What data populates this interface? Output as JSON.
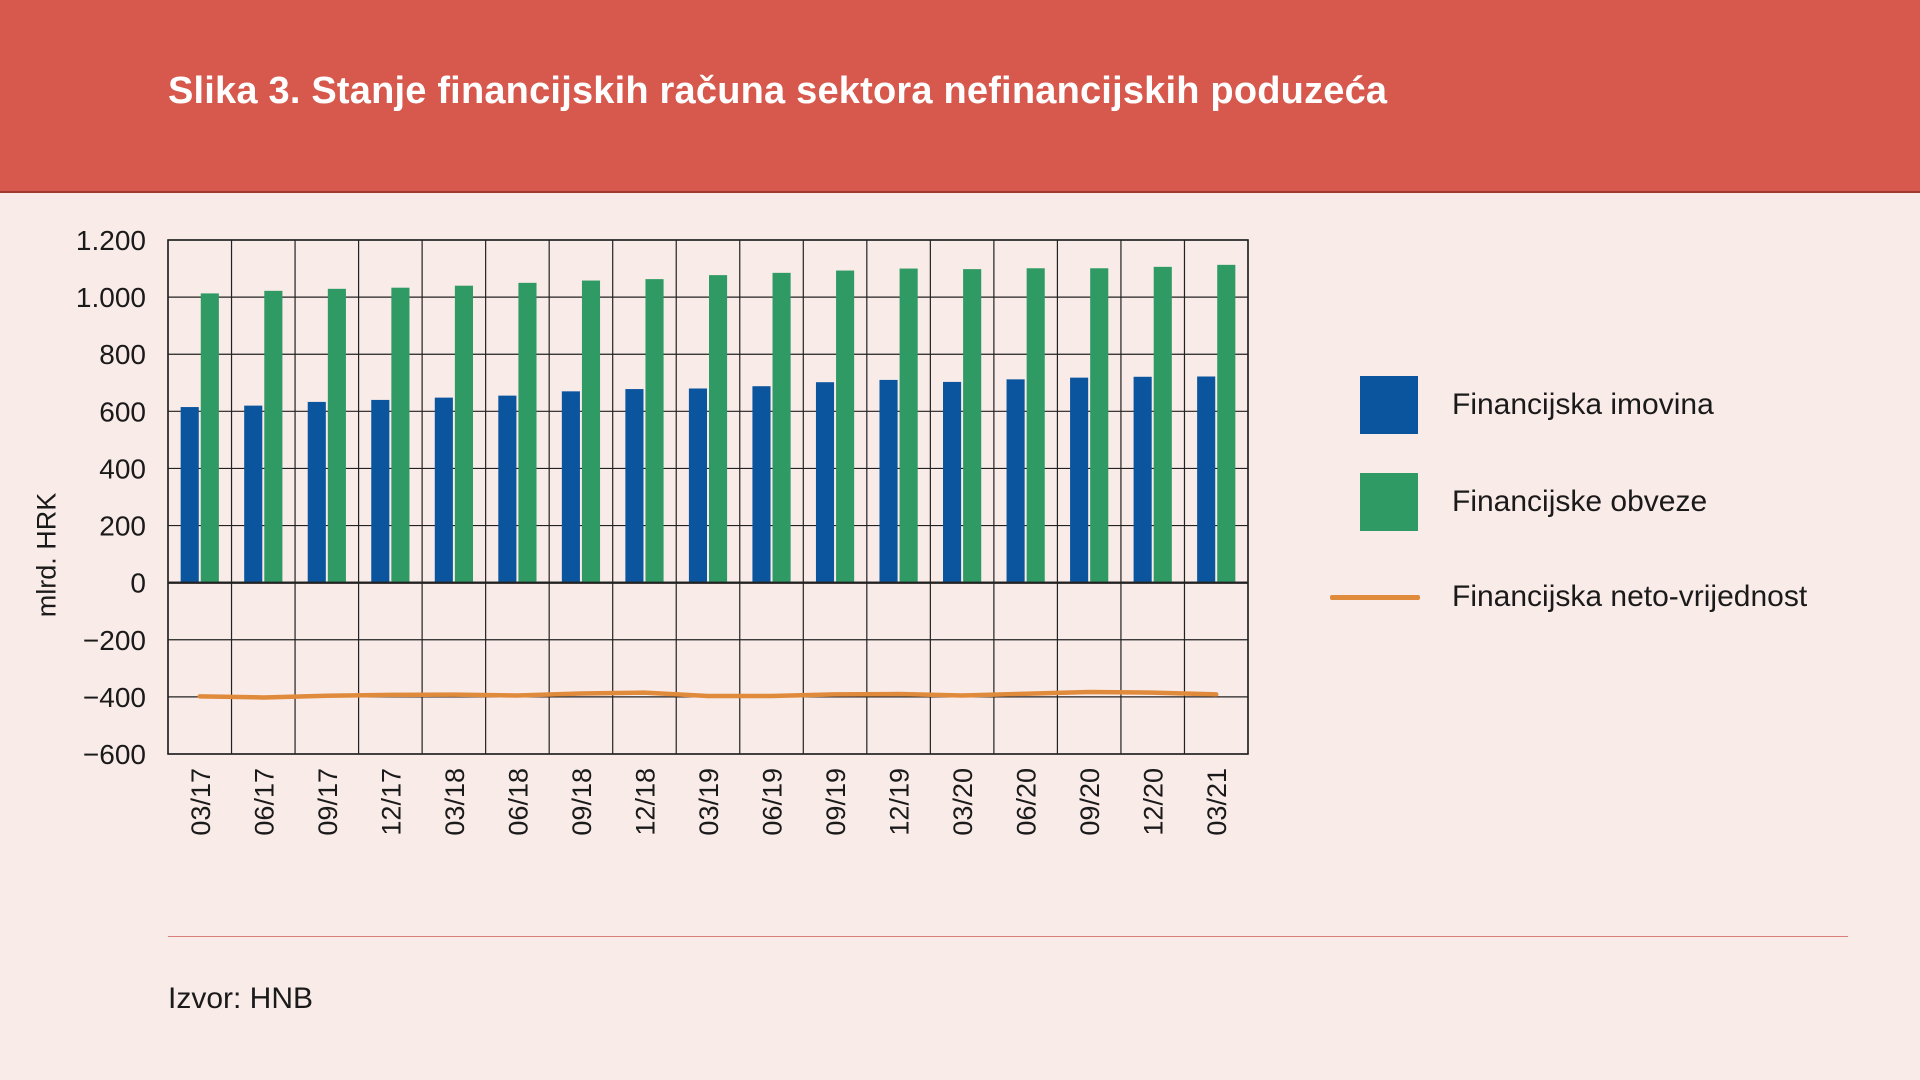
{
  "title": "Slika 3. Stanje financijskih računa sektora nefinancijskih poduzeća",
  "source": "Izvor: HNB",
  "colors": {
    "header": "#d7584c",
    "background": "#f9ebe8",
    "assets": "#0b559f",
    "liabilities": "#2f9a63",
    "net": "#e08a3c"
  },
  "chart_data": {
    "type": "bar",
    "ylabel": "mlrd. HRK",
    "ylim": [
      -600,
      1200
    ],
    "yticks": [
      1200,
      1000,
      800,
      600,
      400,
      200,
      0,
      -200,
      -400,
      -600
    ],
    "ytick_labels": [
      "1.200",
      "1.000",
      "800",
      "600",
      "400",
      "200",
      "0",
      "−200",
      "−400",
      "−600"
    ],
    "grid": true,
    "legend_position": "right",
    "categories": [
      "03/17",
      "06/17",
      "09/17",
      "12/17",
      "03/18",
      "06/18",
      "09/18",
      "12/18",
      "03/19",
      "06/19",
      "09/19",
      "12/19",
      "03/20",
      "06/20",
      "09/20",
      "12/20",
      "03/21"
    ],
    "series": [
      {
        "name": "Financijska imovina",
        "type": "bar",
        "values": [
          615,
          620,
          633,
          640,
          648,
          655,
          670,
          678,
          680,
          688,
          702,
          710,
          703,
          712,
          718,
          721,
          722
        ]
      },
      {
        "name": "Financijske obveze",
        "type": "bar",
        "values": [
          1013,
          1022,
          1029,
          1033,
          1040,
          1050,
          1058,
          1063,
          1077,
          1085,
          1093,
          1100,
          1098,
          1101,
          1101,
          1106,
          1113
        ]
      },
      {
        "name": "Financijska neto-vrijednost",
        "type": "line",
        "values": [
          -398,
          -402,
          -396,
          -393,
          -392,
          -395,
          -388,
          -385,
          -397,
          -397,
          -391,
          -390,
          -395,
          -389,
          -383,
          -385,
          -391
        ]
      }
    ]
  }
}
